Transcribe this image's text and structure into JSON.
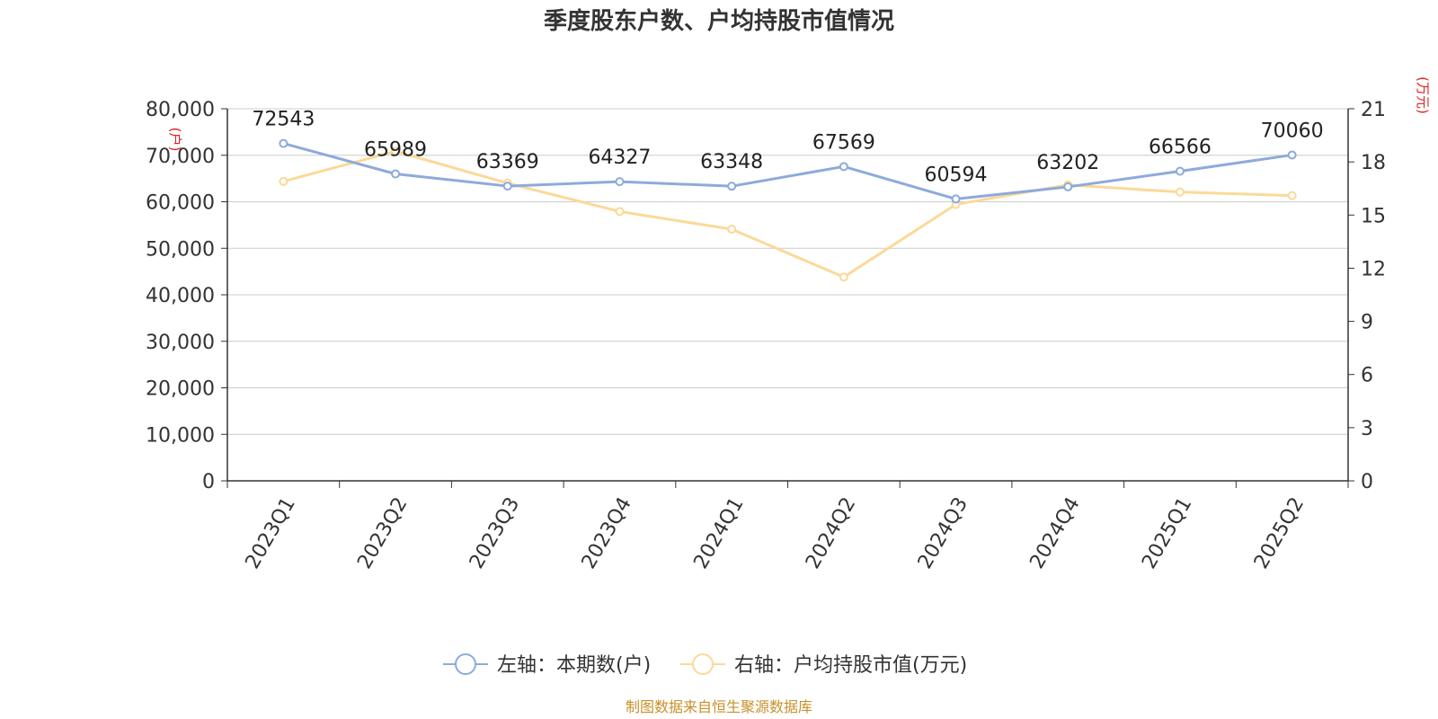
{
  "chart_data": {
    "type": "line",
    "title": "季度股东户数、户均持股市值情况",
    "categories": [
      "2023Q1",
      "2023Q2",
      "2023Q3",
      "2023Q4",
      "2024Q1",
      "2024Q2",
      "2024Q3",
      "2024Q4",
      "2025Q1",
      "2025Q2"
    ],
    "left_axis": {
      "unit": "(户)",
      "ylim": [
        0,
        80000
      ],
      "ticks": [
        0,
        10000,
        20000,
        30000,
        40000,
        50000,
        60000,
        70000,
        80000
      ],
      "tick_labels": [
        "0",
        "10,000",
        "20,000",
        "30,000",
        "40,000",
        "50,000",
        "60,000",
        "70,000",
        "80,000"
      ]
    },
    "right_axis": {
      "unit": "(万元)",
      "ylim": [
        0,
        21
      ],
      "ticks": [
        0,
        3,
        6,
        9,
        12,
        15,
        18,
        21
      ],
      "tick_labels": [
        "0",
        "3",
        "6",
        "9",
        "12",
        "15",
        "18",
        "21"
      ]
    },
    "series": [
      {
        "name": "左轴：本期数(户)",
        "axis": "left",
        "color": "#8eaadb",
        "values": [
          72543,
          65989,
          63369,
          64327,
          63348,
          67569,
          60594,
          63202,
          66566,
          70060
        ],
        "labels": [
          "72543",
          "65989",
          "63369",
          "64327",
          "63348",
          "67569",
          "60594",
          "63202",
          "66566",
          "70060"
        ]
      },
      {
        "name": "右轴：户均持股市值(万元)",
        "axis": "right",
        "color": "#fbd998",
        "values": [
          16.9,
          18.6,
          16.8,
          15.2,
          14.2,
          11.5,
          15.6,
          16.7,
          16.3,
          16.1
        ]
      }
    ],
    "grid": true,
    "legend_position": "bottom"
  },
  "source_note": "制图数据来自恒生聚源数据库"
}
